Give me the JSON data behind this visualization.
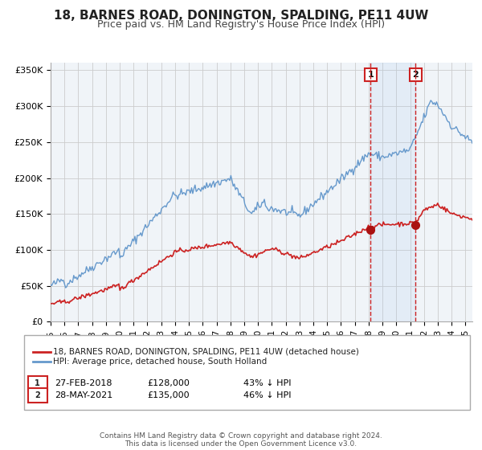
{
  "title": "18, BARNES ROAD, DONINGTON, SPALDING, PE11 4UW",
  "subtitle": "Price paid vs. HM Land Registry's House Price Index (HPI)",
  "legend_line1": "18, BARNES ROAD, DONINGTON, SPALDING, PE11 4UW (detached house)",
  "legend_line2": "HPI: Average price, detached house, South Holland",
  "red_line_color": "#cc2222",
  "blue_line_color": "#6699cc",
  "marker_color": "#aa1111",
  "vline_color": "#cc2222",
  "grid_color": "#cccccc",
  "bg_color": "#ffffff",
  "ylim": [
    0,
    360000
  ],
  "yticks": [
    0,
    50000,
    100000,
    150000,
    200000,
    250000,
    300000,
    350000
  ],
  "ytick_labels": [
    "£0",
    "£50K",
    "£100K",
    "£150K",
    "£200K",
    "£250K",
    "£300K",
    "£350K"
  ],
  "sale1_date": 2018.15,
  "sale1_price": 128000,
  "sale1_label": "27-FEB-2018",
  "sale1_price_label": "£128,000",
  "sale1_hpi_label": "43% ↓ HPI",
  "sale2_date": 2021.4,
  "sale2_price": 135000,
  "sale2_label": "28-MAY-2021",
  "sale2_price_label": "£135,000",
  "sale2_hpi_label": "46% ↓ HPI",
  "footer": "Contains HM Land Registry data © Crown copyright and database right 2024.\nThis data is licensed under the Open Government Licence v3.0.",
  "title_fontsize": 11,
  "subtitle_fontsize": 9,
  "tick_fontsize": 8,
  "legend_fontsize": 8,
  "footer_fontsize": 6.5
}
